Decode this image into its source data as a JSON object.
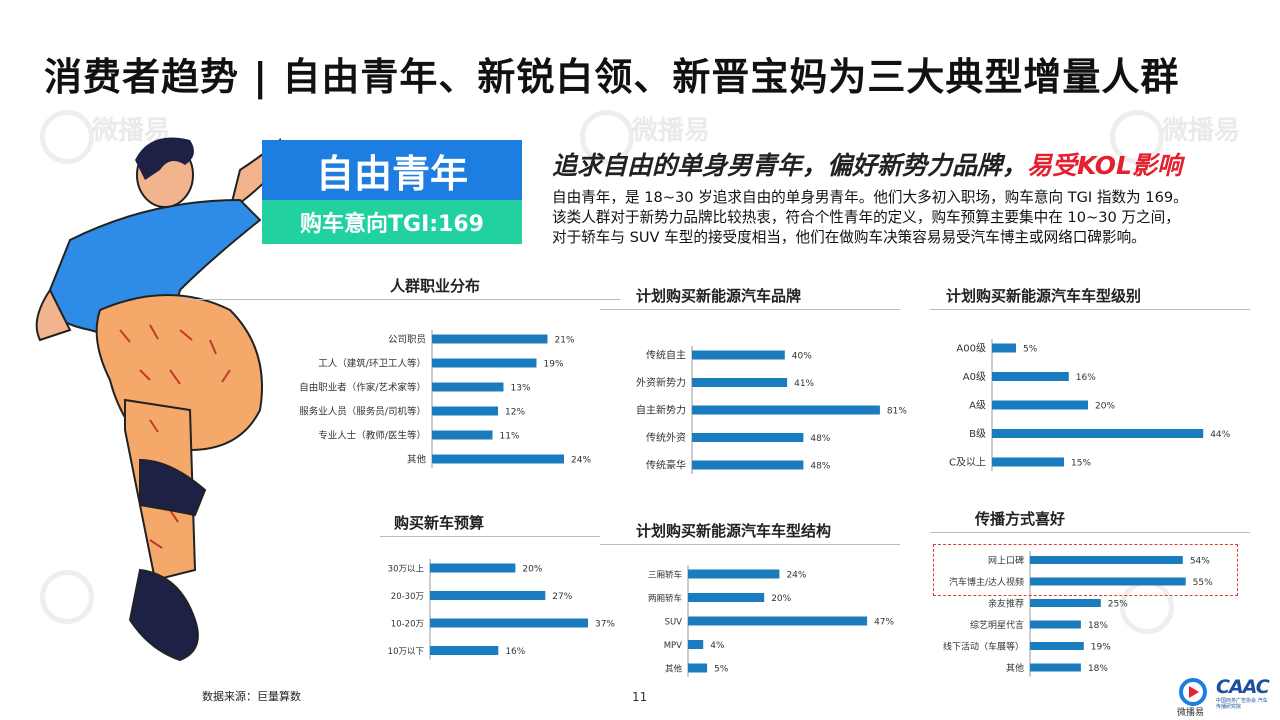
{
  "header": {
    "title": "消费者趋势 | 自由青年、新锐白领、新晋宝妈为三大典型增量人群"
  },
  "watermark_text": "微播易",
  "segment": {
    "name": "自由青年",
    "tgi_label": "购车意向TGI:169",
    "headline_prefix": "追求自由的单身男青年，偏好新势力品牌，",
    "headline_highlight": "易受KOL影响",
    "description": [
      "自由青年，是 18~30 岁追求自由的单身男青年。他们大多初入职场，购车意向 TGI 指数为 169。",
      "该类人群对于新势力品牌比较热衷，符合个性青年的定义，购车预算主要集中在 10~30 万之间，",
      "对于轿车与 SUV 车型的接受度相当，他们在做购车决策容易易受汽车博主或网络口碑影响。"
    ]
  },
  "colors": {
    "bar": "#1b7bbf",
    "accent_blue": "#1d7de0",
    "accent_green": "#21d19f",
    "highlight_red": "#e5202e"
  },
  "chart_data": [
    {
      "id": "occupation",
      "type": "bar",
      "orientation": "horizontal",
      "title": "人群职业分布",
      "categories": [
        "公司职员",
        "工人（建筑/环卫工人等）",
        "自由职业者（作家/艺术家等）",
        "服务业人员（服务员/司机等）",
        "专业人士（教师/医生等）",
        "其他"
      ],
      "values": [
        21,
        19,
        13,
        12,
        11,
        24
      ],
      "labels": [
        "21%",
        "19%",
        "13%",
        "12%",
        "11%",
        "24%"
      ],
      "unit": "%"
    },
    {
      "id": "brand",
      "type": "bar",
      "orientation": "horizontal",
      "title": "计划购买新能源汽车品牌",
      "categories": [
        "传统自主",
        "外资新势力",
        "自主新势力",
        "传统外资",
        "传统豪华"
      ],
      "values": [
        40,
        41,
        81,
        48,
        48
      ],
      "labels": [
        "40%",
        "41%",
        "81%",
        "48%",
        "48%"
      ],
      "unit": "%"
    },
    {
      "id": "level",
      "type": "bar",
      "orientation": "horizontal",
      "title": "计划购买新能源汽车车型级别",
      "categories": [
        "A00级",
        "A0级",
        "A级",
        "B级",
        "C及以上"
      ],
      "values": [
        5,
        16,
        20,
        44,
        15
      ],
      "labels": [
        "5%",
        "16%",
        "20%",
        "44%",
        "15%"
      ],
      "unit": "%"
    },
    {
      "id": "budget",
      "type": "bar",
      "orientation": "horizontal",
      "title": "购买新车预算",
      "categories": [
        "30万以上",
        "20-30万",
        "10-20万",
        "10万以下"
      ],
      "values": [
        20,
        27,
        37,
        16
      ],
      "labels": [
        "20%",
        "27%",
        "37%",
        "16%"
      ],
      "unit": "%"
    },
    {
      "id": "structure",
      "type": "bar",
      "orientation": "horizontal",
      "title": "计划购买新能源汽车车型结构",
      "categories": [
        "三厢轿车",
        "两厢轿车",
        "SUV",
        "MPV",
        "其他"
      ],
      "values": [
        24,
        20,
        47,
        4,
        5
      ],
      "labels": [
        "24%",
        "20%",
        "47%",
        "4%",
        "5%"
      ],
      "unit": "%"
    },
    {
      "id": "channel",
      "type": "bar",
      "orientation": "horizontal",
      "title": "传播方式喜好",
      "categories": [
        "网上口碑",
        "汽车博主/达人视频",
        "亲友推荐",
        "综艺明星代言",
        "线下活动（车展等）",
        "其他"
      ],
      "values": [
        54,
        55,
        25,
        18,
        19,
        18
      ],
      "labels": [
        "54%",
        "55%",
        "25%",
        "18%",
        "19%",
        "18%"
      ],
      "unit": "%",
      "highlighted": [
        "网上口碑",
        "汽车博主/达人视频"
      ]
    }
  ],
  "footer": {
    "source": "数据来源：巨量算数",
    "page_number": "11",
    "logo1_text": "微播易",
    "logo2_text": "CAAC",
    "logo2_sub": "中国商务广告协会 汽车传播研究院"
  }
}
